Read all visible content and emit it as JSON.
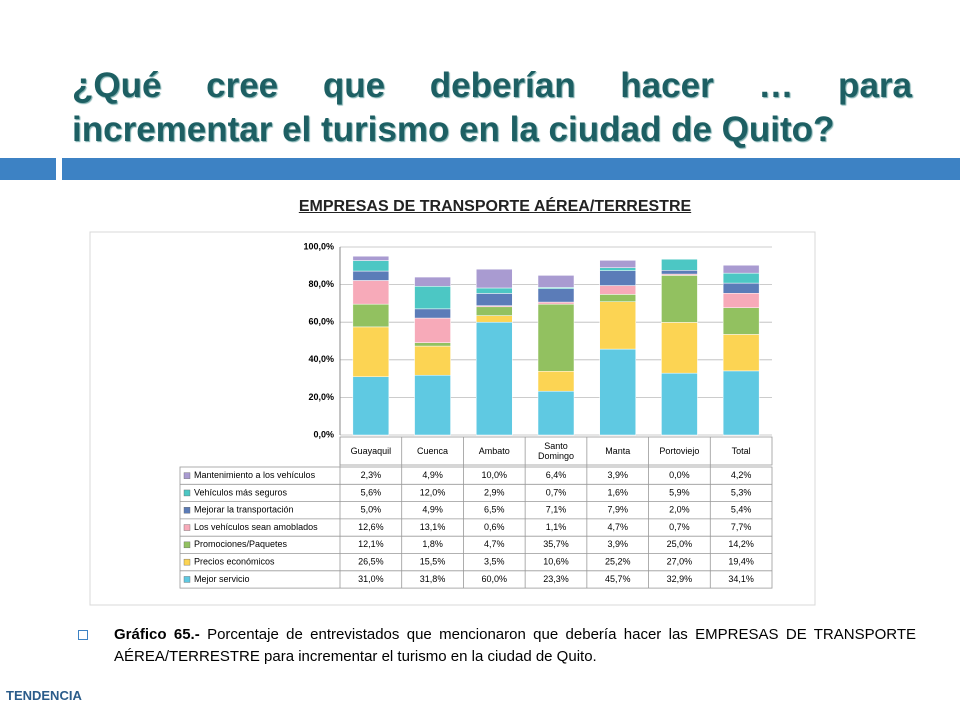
{
  "header": {
    "title": "¿Qué cree que deberían hacer … para incrementar el turismo en la ciudad de Quito?"
  },
  "chart_data": {
    "type": "bar",
    "stacked": true,
    "title": "EMPRESAS DE TRANSPORTE AÉREA/TERRESTRE",
    "categories": [
      "Guayaquil",
      "Cuenca",
      "Ambato",
      "Santo Domingo",
      "Manta",
      "Portoviejo",
      "Total"
    ],
    "ylim": [
      0,
      100
    ],
    "yticks": [
      {
        "value": 0,
        "label": "0,0%"
      },
      {
        "value": 20,
        "label": "20,0%"
      },
      {
        "value": 40,
        "label": "40,0%"
      },
      {
        "value": 60,
        "label": "60,0%"
      },
      {
        "value": 80,
        "label": "80,0%"
      },
      {
        "value": 100,
        "label": "100,0%"
      }
    ],
    "grid": true,
    "series": [
      {
        "name": "Mantenimiento a los vehículos",
        "color": "#a99bd1",
        "values": [
          2.3,
          4.9,
          10.0,
          6.4,
          3.9,
          0.0,
          4.2
        ],
        "value_labels": [
          "2,3%",
          "4,9%",
          "10,0%",
          "6,4%",
          "3,9%",
          "0,0%",
          "4,2%"
        ]
      },
      {
        "name": "Vehículos más seguros",
        "color": "#4cc7c4",
        "values": [
          5.6,
          12.0,
          2.9,
          0.7,
          1.6,
          5.9,
          5.3
        ],
        "value_labels": [
          "5,6%",
          "12,0%",
          "2,9%",
          "0,7%",
          "1,6%",
          "5,9%",
          "5,3%"
        ]
      },
      {
        "name": "Mejorar la transportación",
        "color": "#5b7cb8",
        "values": [
          5.0,
          4.9,
          6.5,
          7.1,
          7.9,
          2.0,
          5.4
        ],
        "value_labels": [
          "5,0%",
          "4,9%",
          "6,5%",
          "7,1%",
          "7,9%",
          "2,0%",
          "5,4%"
        ]
      },
      {
        "name": "Los vehículos sean amoblados",
        "color": "#f7aab9",
        "values": [
          12.6,
          13.1,
          0.6,
          1.1,
          4.7,
          0.7,
          7.7
        ],
        "value_labels": [
          "12,6%",
          "13,1%",
          "0,6%",
          "1,1%",
          "4,7%",
          "0,7%",
          "7,7%"
        ]
      },
      {
        "name": "Promociones/Paquetes",
        "color": "#92c160",
        "values": [
          12.1,
          1.8,
          4.7,
          35.7,
          3.9,
          25.0,
          14.2
        ],
        "value_labels": [
          "12,1%",
          "1,8%",
          "4,7%",
          "35,7%",
          "3,9%",
          "25,0%",
          "14,2%"
        ]
      },
      {
        "name": "Precios económicos",
        "color": "#fcd453",
        "values": [
          26.5,
          15.5,
          3.5,
          10.6,
          25.2,
          27.0,
          19.4
        ],
        "value_labels": [
          "26,5%",
          "15,5%",
          "3,5%",
          "10,6%",
          "25,2%",
          "27,0%",
          "19,4%"
        ]
      },
      {
        "name": "Mejor servicio",
        "color": "#5fc9e2",
        "values": [
          31.0,
          31.8,
          60.0,
          23.3,
          45.7,
          32.9,
          34.1
        ],
        "value_labels": [
          "31,0%",
          "31,8%",
          "60,0%",
          "23,3%",
          "45,7%",
          "32,9%",
          "34,1%"
        ]
      }
    ]
  },
  "caption": {
    "label": "Gráfico 65.-",
    "text": "Porcentaje de entrevistados que mencionaron que debería hacer las EMPRESAS DE TRANSPORTE AÉREA/TERRESTRE para incrementar el turismo en la ciudad de Quito."
  },
  "logo": {
    "left": "TENDENCIA"
  }
}
